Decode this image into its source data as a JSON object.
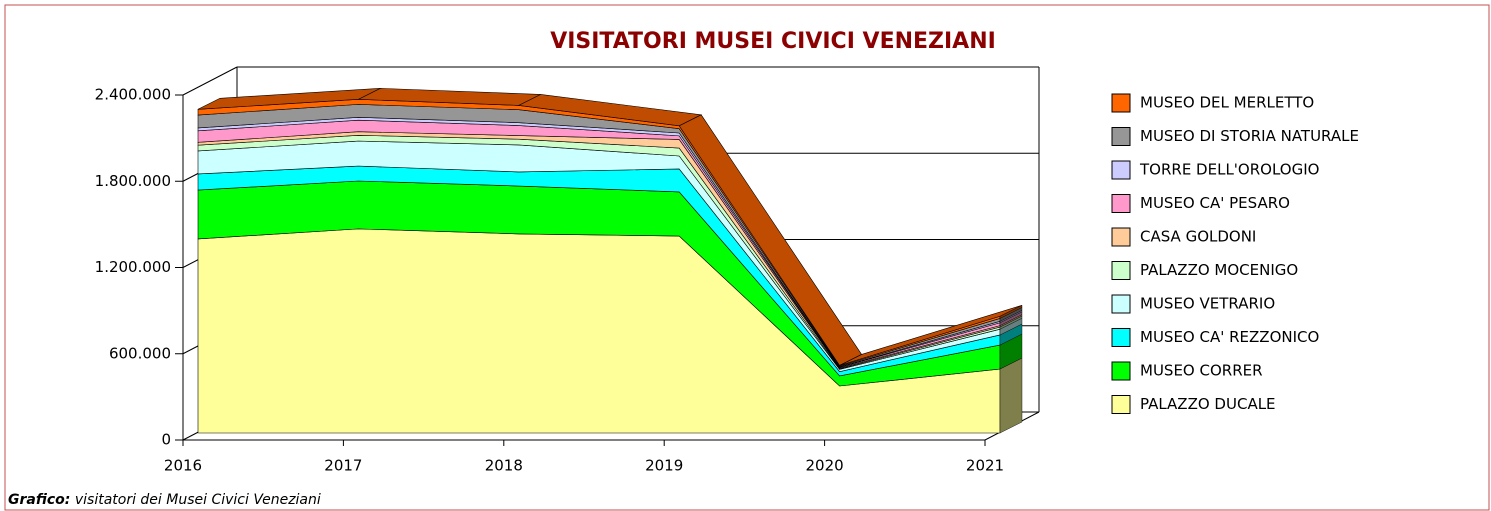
{
  "chart_data": {
    "type": "area3d",
    "title": "VISITATORI MUSEI CIVICI VENEZIANI",
    "categories": [
      "2016",
      "2017",
      "2018",
      "2019",
      "2020",
      "2021"
    ],
    "ylim": [
      0,
      2400000
    ],
    "yticks": [
      0,
      {
        "value": 600000,
        "label": "600.000"
      },
      {
        "value": 1200000,
        "label": "1.200.000"
      },
      {
        "value": 1800000,
        "label": "1.800.000"
      },
      {
        "value": 2400000,
        "label": "2.400.000"
      }
    ],
    "grid": true,
    "stacked": true,
    "series": [
      {
        "name": "PALAZZO DUCALE",
        "color": "#ffff99",
        "values": [
          1350000,
          1420000,
          1385000,
          1370000,
          327000,
          445000
        ]
      },
      {
        "name": "MUSEO CORRER",
        "color": "#00ff00",
        "values": [
          340000,
          333000,
          333000,
          307000,
          70000,
          167000
        ]
      },
      {
        "name": "MUSEO CA' REZZONICO",
        "color": "#00ffff",
        "values": [
          112000,
          104000,
          98000,
          160000,
          30000,
          70000
        ]
      },
      {
        "name": "MUSEO VETRARIO",
        "color": "#ccffff",
        "values": [
          160000,
          174000,
          188000,
          90000,
          15000,
          40000
        ]
      },
      {
        "name": "PALAZZO MOCENIGO",
        "color": "#ccffcc",
        "values": [
          40000,
          40000,
          40000,
          55000,
          5000,
          15000
        ]
      },
      {
        "name": "CASA GOLDONI",
        "color": "#ffcc99",
        "values": [
          20000,
          25000,
          25000,
          60000,
          5000,
          10000
        ]
      },
      {
        "name": "MUSEO CA' PESARO",
        "color": "#ff99cc",
        "values": [
          80000,
          80000,
          70000,
          25000,
          5000,
          20000
        ]
      },
      {
        "name": "TORRE DELL'OROLOGIO",
        "color": "#ccccff",
        "values": [
          20000,
          20000,
          20000,
          20000,
          3000,
          10000
        ]
      },
      {
        "name": "MUSEO DI STORIA NATURALE",
        "color": "#969696",
        "values": [
          90000,
          90000,
          90000,
          30000,
          5000,
          20000
        ]
      },
      {
        "name": "MUSEO DEL MERLETTO",
        "color": "#ff6600",
        "values": [
          40000,
          35000,
          30000,
          20000,
          5000,
          15000
        ]
      }
    ],
    "source_label": "Grafico:",
    "source": "visitatori dei Musei Civici Veneziani"
  }
}
